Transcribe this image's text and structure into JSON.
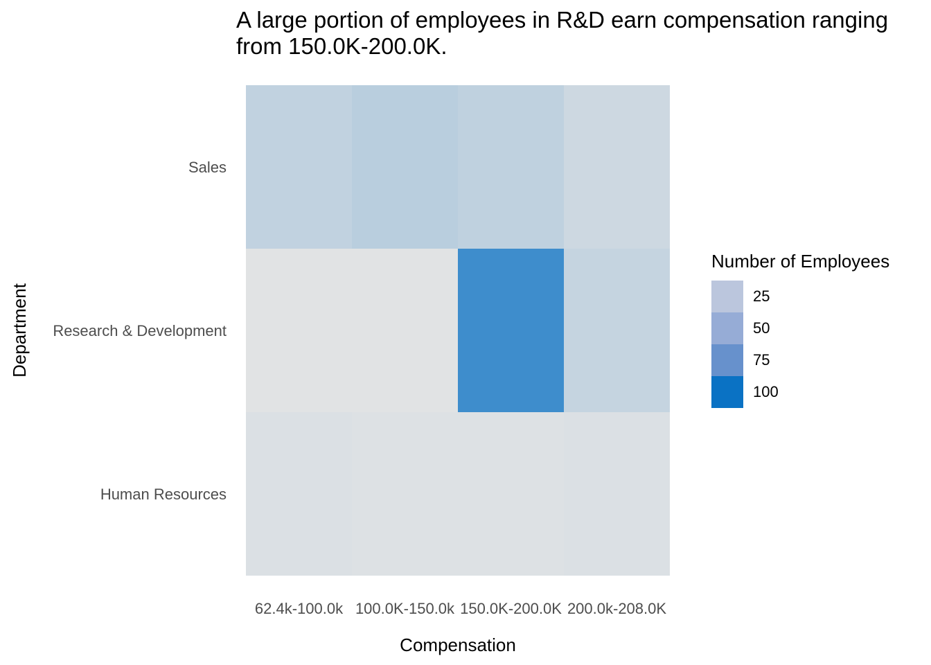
{
  "chart_data": {
    "type": "heatmap",
    "title": "A large portion of employees in R&D earn compensation ranging from 150.0K-200.0K.",
    "xlabel": "Compensation",
    "ylabel": "Department",
    "x_categories": [
      "62.4k-100.0k",
      "100.0K-150.0k",
      "150.0K-200.0K",
      "200.0k-208.0K"
    ],
    "y_categories": [
      "Sales",
      "Research & Development",
      "Human Resources"
    ],
    "values": [
      [
        18,
        22,
        19,
        12
      ],
      [
        2,
        2,
        84,
        16
      ],
      [
        5,
        4,
        4,
        5
      ]
    ],
    "color_scale": {
      "low": "#e5e5e5",
      "high": "#0a72c4",
      "min": 0,
      "max": 110
    },
    "legend": {
      "title": "Number of Employees",
      "position": "right",
      "ticks": [
        {
          "label": "25",
          "color": "#bbc6dd"
        },
        {
          "label": "50",
          "color": "#96acd6"
        },
        {
          "label": "75",
          "color": "#6791cc"
        },
        {
          "label": "100",
          "color": "#0a72c4"
        }
      ]
    },
    "grid": false
  }
}
